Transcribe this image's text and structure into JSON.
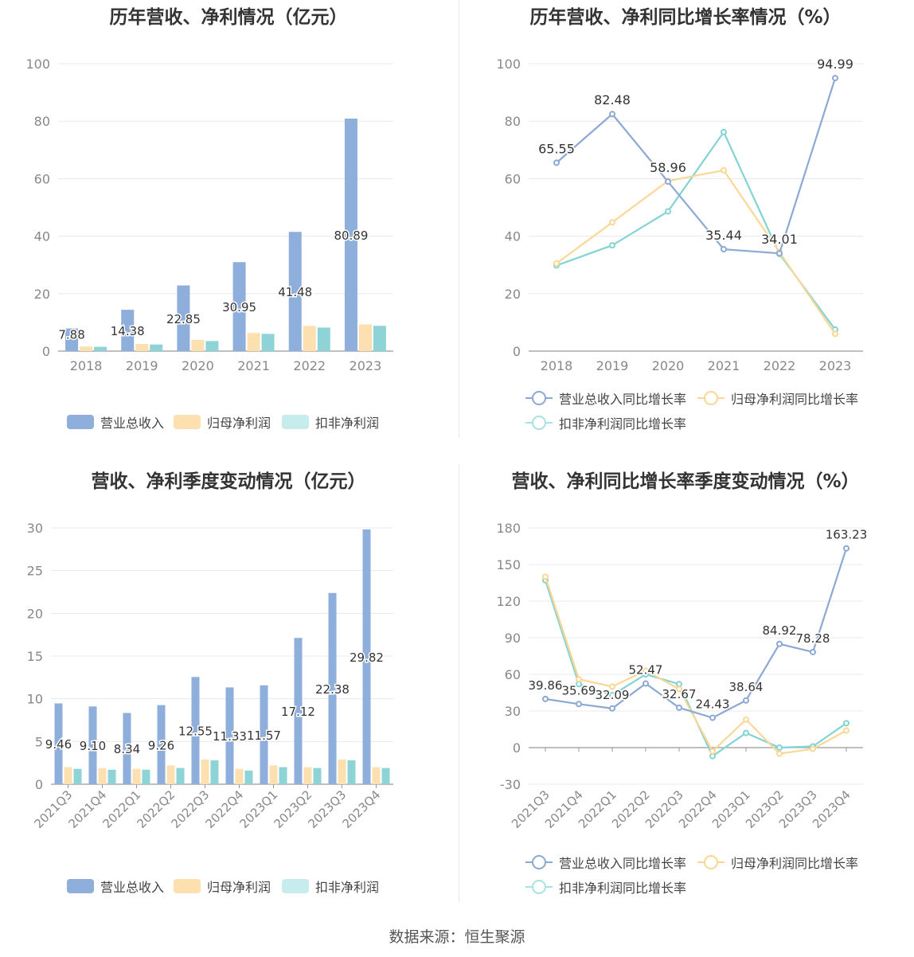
{
  "colors": {
    "revenue": "#8eaedb",
    "parent": "#fde0b0",
    "deducted": "#8ed4d6",
    "revenue_line": "#8ca8d4",
    "parent_line": "#fbd796",
    "deducted_line": "#82d4d2",
    "grid": "#e6e8ee",
    "axis": "#888888"
  },
  "footer": "数据来源：恒生聚源",
  "chart_data": [
    {
      "type": "bar",
      "title": "历年营收、净利情况（亿元）",
      "categories": [
        "2018",
        "2019",
        "2020",
        "2021",
        "2022",
        "2023"
      ],
      "ylim": [
        0,
        100
      ],
      "yticks": [
        0,
        20,
        40,
        60,
        80,
        100
      ],
      "series": [
        {
          "name": "营业总收入",
          "values": [
            7.88,
            14.38,
            22.85,
            30.95,
            41.48,
            80.89
          ],
          "labels": [
            "7.88",
            "14.38",
            "22.85",
            "30.95",
            "41.48",
            "80.89"
          ]
        },
        {
          "name": "归母净利润",
          "values": [
            1.6,
            2.5,
            3.9,
            6.3,
            8.8,
            9.3
          ]
        },
        {
          "name": "扣非净利润",
          "values": [
            1.5,
            2.3,
            3.5,
            6.0,
            8.2,
            8.8
          ]
        }
      ],
      "legend": "bottom",
      "grid": true
    },
    {
      "type": "line",
      "title": "历年营收、净利同比增长率情况（%）",
      "categories": [
        "2018",
        "2019",
        "2020",
        "2021",
        "2022",
        "2023"
      ],
      "ylim": [
        0,
        100
      ],
      "yticks": [
        0,
        20,
        40,
        60,
        80,
        100
      ],
      "series": [
        {
          "name": "营业总收入同比增长率",
          "values": [
            65.55,
            82.48,
            58.96,
            35.44,
            34.01,
            94.99
          ],
          "labels": [
            "65.55",
            "82.48",
            "58.96",
            "35.44",
            "34.01",
            "94.99"
          ]
        },
        {
          "name": "归母净利润同比增长率",
          "values": [
            30.5,
            44.8,
            59.2,
            62.9,
            34.5,
            6.0
          ]
        },
        {
          "name": "扣非净利润同比增长率",
          "values": [
            29.8,
            36.8,
            48.6,
            76.2,
            33.8,
            7.5
          ]
        }
      ],
      "legend": "bottom",
      "grid": true
    },
    {
      "type": "bar",
      "title": "营收、净利季度变动情况（亿元）",
      "categories": [
        "2021Q3",
        "2021Q4",
        "2022Q1",
        "2022Q2",
        "2022Q3",
        "2022Q4",
        "2023Q1",
        "2023Q2",
        "2023Q3",
        "2023Q4"
      ],
      "ylim": [
        0,
        30
      ],
      "yticks": [
        0,
        5,
        10,
        15,
        20,
        25,
        30
      ],
      "series": [
        {
          "name": "营业总收入",
          "values": [
            9.46,
            9.1,
            8.34,
            9.26,
            12.55,
            11.33,
            11.57,
            17.12,
            22.38,
            29.82
          ],
          "labels": [
            "9.46",
            "9.10",
            "8.34",
            "9.26",
            "12.55",
            "11.33",
            "11.57",
            "17.12",
            "22.38",
            "29.82"
          ]
        },
        {
          "name": "归母净利润",
          "values": [
            2.0,
            1.9,
            1.8,
            2.2,
            2.9,
            1.8,
            2.2,
            2.0,
            2.9,
            2.0
          ]
        },
        {
          "name": "扣非净利润",
          "values": [
            1.8,
            1.7,
            1.7,
            1.9,
            2.8,
            1.6,
            2.0,
            1.9,
            2.8,
            1.9
          ]
        }
      ],
      "legend": "bottom",
      "grid": true
    },
    {
      "type": "line",
      "title": "营收、净利同比增长率季度变动情况（%）",
      "categories": [
        "2021Q3",
        "2021Q4",
        "2022Q1",
        "2022Q2",
        "2022Q3",
        "2022Q4",
        "2023Q1",
        "2023Q2",
        "2023Q3",
        "2023Q4"
      ],
      "ylim": [
        -30,
        180
      ],
      "yticks": [
        -30,
        0,
        30,
        60,
        90,
        120,
        150,
        180
      ],
      "series": [
        {
          "name": "营业总收入同比增长率",
          "values": [
            39.86,
            35.69,
            32.09,
            52.47,
            32.67,
            24.43,
            38.64,
            84.92,
            78.28,
            163.23
          ],
          "labels": [
            "39.86",
            "35.69",
            "32.09",
            "52.47",
            "32.67",
            "24.43",
            "38.64",
            "84.92",
            "78.28",
            "163.23"
          ]
        },
        {
          "name": "归母净利润同比增长率",
          "values": [
            140,
            56,
            50,
            63,
            48,
            -3,
            23,
            -5,
            -1,
            14
          ]
        },
        {
          "name": "扣非净利润同比增长率",
          "values": [
            137,
            52,
            43,
            60,
            52,
            -7,
            12,
            0,
            1,
            20
          ]
        }
      ],
      "legend": "bottom",
      "grid": true
    }
  ]
}
